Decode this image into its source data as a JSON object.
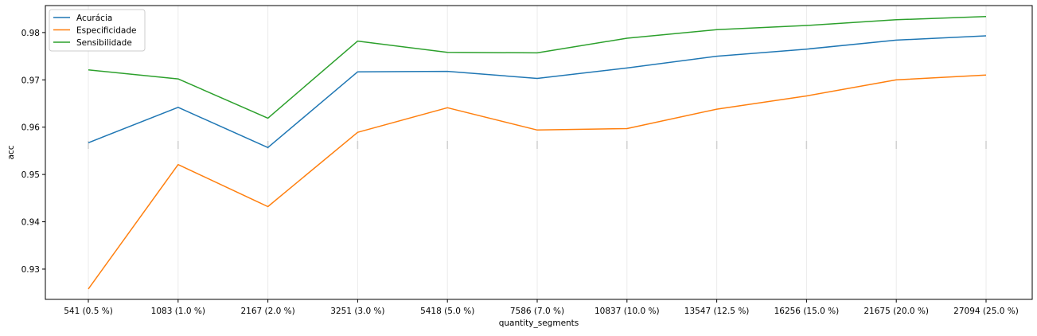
{
  "chart_data": {
    "type": "line",
    "title": "",
    "xlabel": "quantity_segments",
    "ylabel": "acc",
    "categories": [
      "541 (0.5 %)",
      "1083 (1.0 %)",
      "2167 (2.0 %)",
      "3251 (3.0 %)",
      "5418 (5.0 %)",
      "7586 (7.0 %)",
      "10837 (10.0 %)",
      "13547 (12.5 %)",
      "16256 (15.0 %)",
      "21675 (20.0 %)",
      "27094 (25.0 %)"
    ],
    "series": [
      {
        "name": "Acurácia",
        "color": "#1f77b4",
        "values": [
          0.9567,
          0.9642,
          0.9557,
          0.9717,
          0.9718,
          0.9703,
          0.9725,
          0.975,
          0.9765,
          0.9784,
          0.9793
        ]
      },
      {
        "name": "Especificidade",
        "color": "#ff7f0e",
        "values": [
          0.9258,
          0.9521,
          0.9432,
          0.9589,
          0.9641,
          0.9594,
          0.9597,
          0.9638,
          0.9666,
          0.97,
          0.971
        ]
      },
      {
        "name": "Sensibilidade",
        "color": "#2ca02c",
        "values": [
          0.9721,
          0.9702,
          0.9619,
          0.9782,
          0.9758,
          0.9757,
          0.9788,
          0.9806,
          0.9815,
          0.9827,
          0.9834
        ]
      }
    ],
    "yticks": [
      0.93,
      0.94,
      0.95,
      0.96,
      0.97,
      0.98
    ],
    "ylim": [
      0.9236,
      0.9857
    ],
    "grid": "vertical",
    "legend": "upper-left"
  }
}
